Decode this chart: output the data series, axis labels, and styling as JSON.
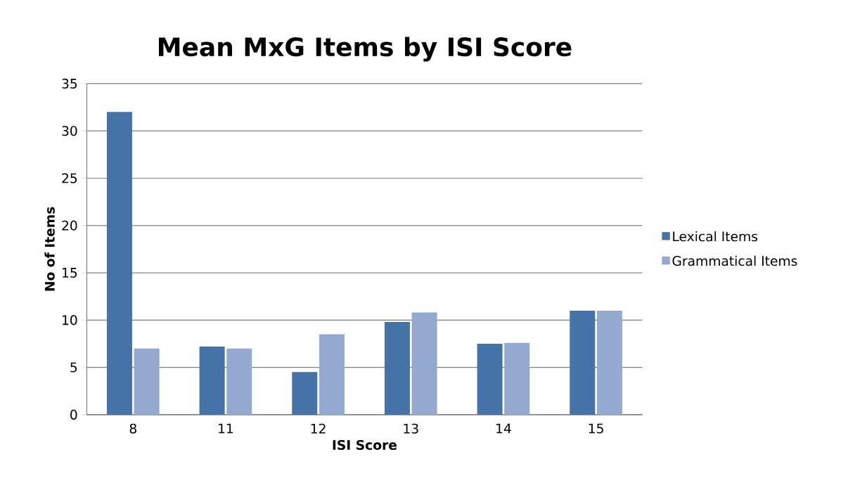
{
  "chart_data": {
    "type": "bar",
    "title": "Mean MxG Items by ISI Score",
    "xlabel": "ISI Score",
    "ylabel": "No of Items",
    "categories": [
      "8",
      "11",
      "12",
      "13",
      "14",
      "15"
    ],
    "series": [
      {
        "name": "Lexical Items",
        "color": "#4572a7",
        "values": [
          32,
          7.2,
          4.5,
          9.8,
          7.5,
          11
        ]
      },
      {
        "name": "Grammatical Items",
        "color": "#93a9cf",
        "values": [
          7,
          7,
          8.5,
          10.8,
          7.6,
          11
        ]
      }
    ],
    "ylim": [
      0,
      35
    ],
    "yticks": [
      0,
      5,
      10,
      15,
      20,
      25,
      30,
      35
    ],
    "grid": "y",
    "legend": "right"
  }
}
